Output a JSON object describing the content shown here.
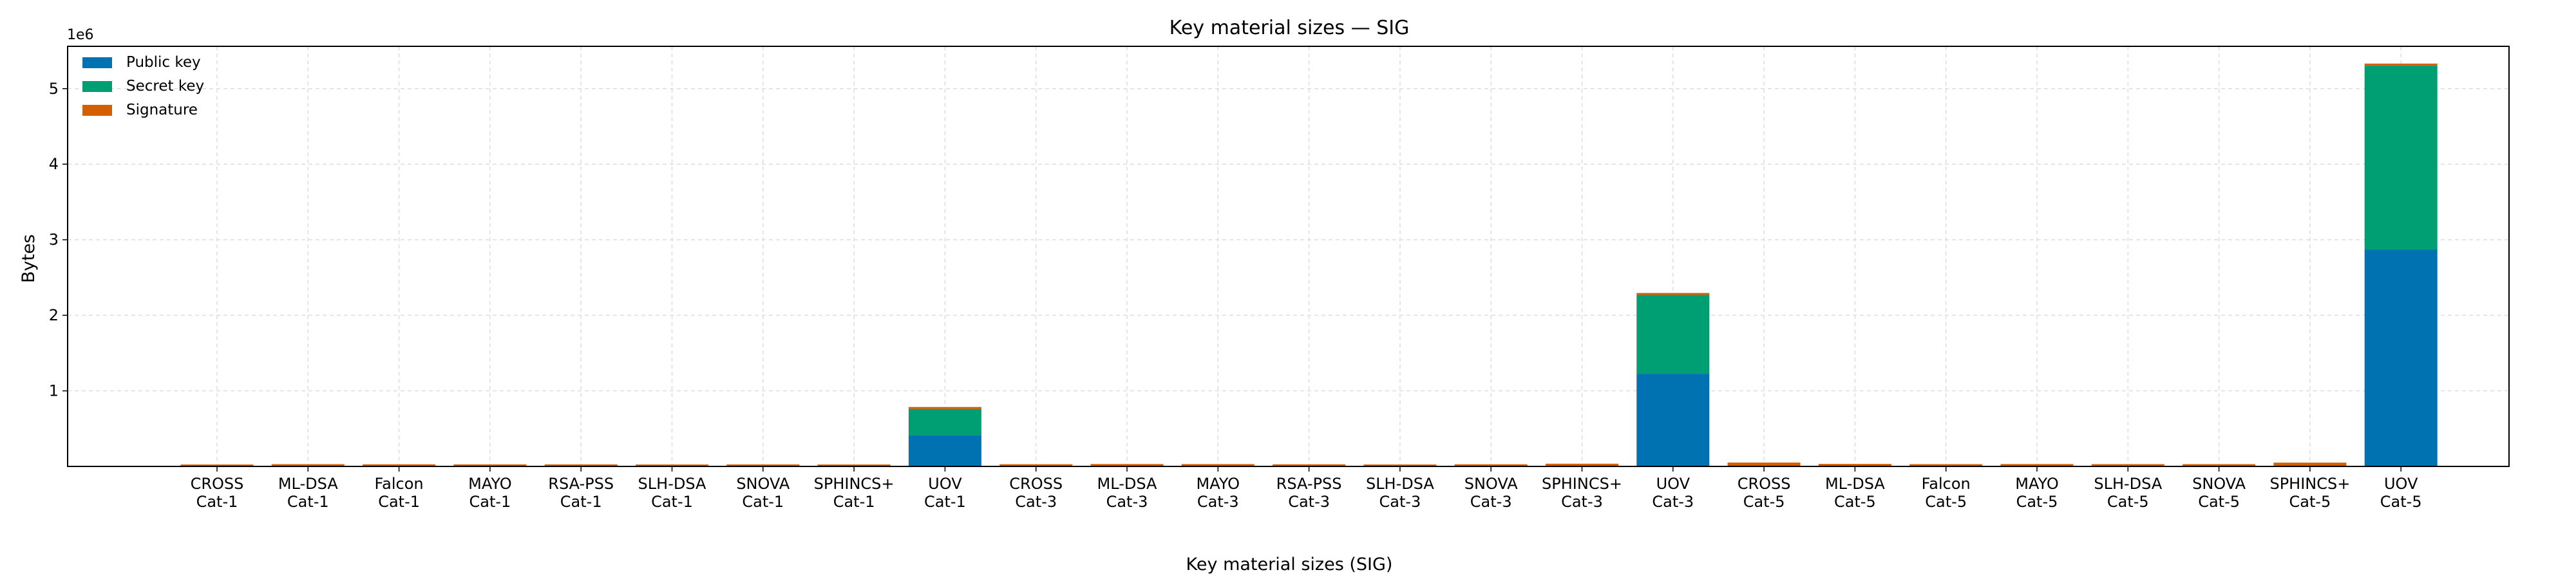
{
  "chart_data": {
    "type": "bar",
    "stacked": true,
    "title": "Key material sizes — SIG",
    "xlabel": "Key material sizes (SIG)",
    "ylabel": "Bytes",
    "y_scale_label": "1e6",
    "ylim": [
      0,
      5560000
    ],
    "yticks": [
      1,
      2,
      3,
      4,
      5
    ],
    "grid": true,
    "legend_position": "top-left",
    "categories": [
      [
        "CROSS",
        "Cat-1"
      ],
      [
        "ML-DSA",
        "Cat-1"
      ],
      [
        "Falcon",
        "Cat-1"
      ],
      [
        "MAYO",
        "Cat-1"
      ],
      [
        "RSA-PSS",
        "Cat-1"
      ],
      [
        "SLH-DSA",
        "Cat-1"
      ],
      [
        "SNOVA",
        "Cat-1"
      ],
      [
        "SPHINCS+",
        "Cat-1"
      ],
      [
        "UOV",
        "Cat-1"
      ],
      [
        "CROSS",
        "Cat-3"
      ],
      [
        "ML-DSA",
        "Cat-3"
      ],
      [
        "MAYO",
        "Cat-3"
      ],
      [
        "RSA-PSS",
        "Cat-3"
      ],
      [
        "SLH-DSA",
        "Cat-3"
      ],
      [
        "SNOVA",
        "Cat-3"
      ],
      [
        "SPHINCS+",
        "Cat-3"
      ],
      [
        "UOV",
        "Cat-3"
      ],
      [
        "CROSS",
        "Cat-5"
      ],
      [
        "ML-DSA",
        "Cat-5"
      ],
      [
        "Falcon",
        "Cat-5"
      ],
      [
        "MAYO",
        "Cat-5"
      ],
      [
        "SLH-DSA",
        "Cat-5"
      ],
      [
        "SNOVA",
        "Cat-5"
      ],
      [
        "SPHINCS+",
        "Cat-5"
      ],
      [
        "UOV",
        "Cat-5"
      ]
    ],
    "series": [
      {
        "name": "Public key",
        "color": "#0072B2",
        "values": [
          77,
          1312,
          897,
          1420,
          384,
          32,
          1016,
          32,
          412160,
          115,
          1952,
          4912,
          384,
          48,
          2320,
          48,
          1225440,
          153,
          2592,
          1793,
          5554,
          64,
          4112,
          64,
          2869440
        ]
      },
      {
        "name": "Secret key",
        "color": "#009E73",
        "values": [
          32,
          2560,
          1281,
          24,
          1200,
          64,
          48,
          64,
          348704,
          48,
          4032,
          40,
          1800,
          96,
          48,
          96,
          1044320,
          64,
          4896,
          2305,
          40,
          128,
          64,
          128,
          2436704
        ]
      },
      {
        "name": "Signature",
        "color": "#D55E00",
        "values": [
          12432,
          2420,
          666,
          454,
          384,
          7856,
          248,
          17088,
          96,
          28391,
          3309,
          681,
          384,
          16224,
          376,
          35664,
          200,
          50818,
          4627,
          1280,
          964,
          29792,
          576,
          49856,
          260
        ]
      }
    ]
  }
}
